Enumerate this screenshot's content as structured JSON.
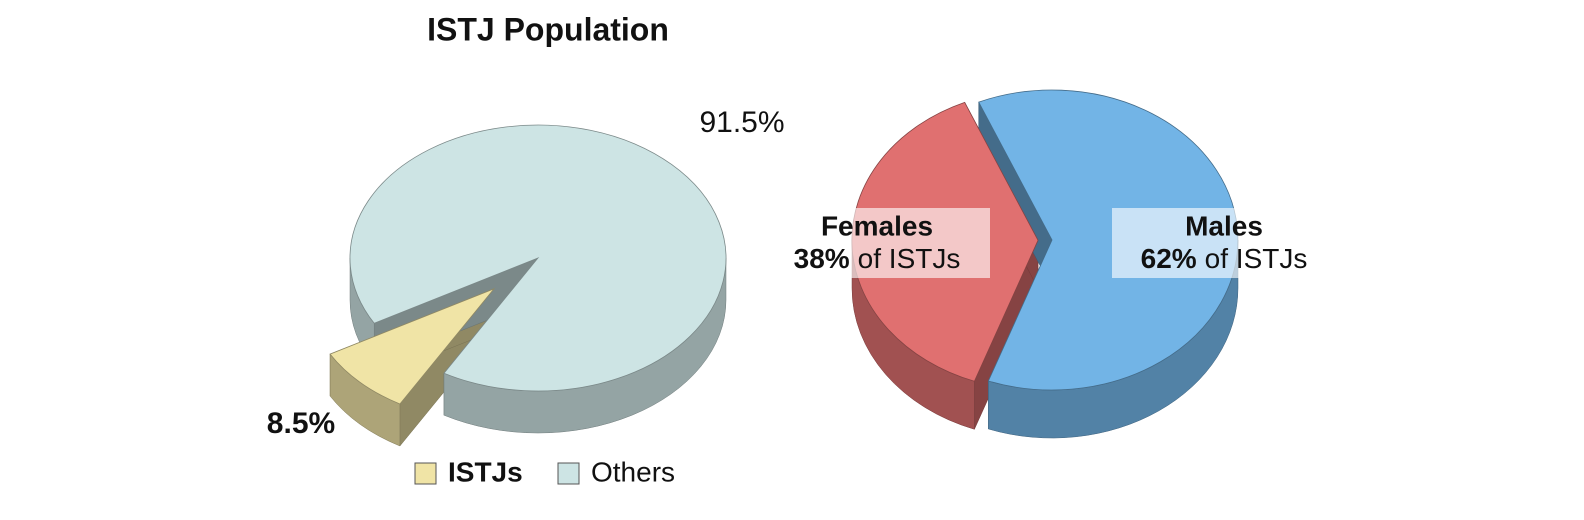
{
  "chart_data": [
    {
      "type": "pie",
      "title": "ISTJ Population",
      "categories": [
        "ISTJs",
        "Others"
      ],
      "values": [
        8.5,
        91.5
      ],
      "value_labels": [
        "8.5%",
        "91.5%"
      ],
      "colors": [
        "#f0e4a6",
        "#cde4e4"
      ],
      "legend": true
    },
    {
      "type": "pie",
      "categories": [
        "Females",
        "Males"
      ],
      "values": [
        38,
        62
      ],
      "value_labels": [
        "38%",
        "62%"
      ],
      "label_note": "of ISTJs",
      "colors": [
        "#e07070",
        "#72b4e6"
      ],
      "legend": false
    }
  ]
}
